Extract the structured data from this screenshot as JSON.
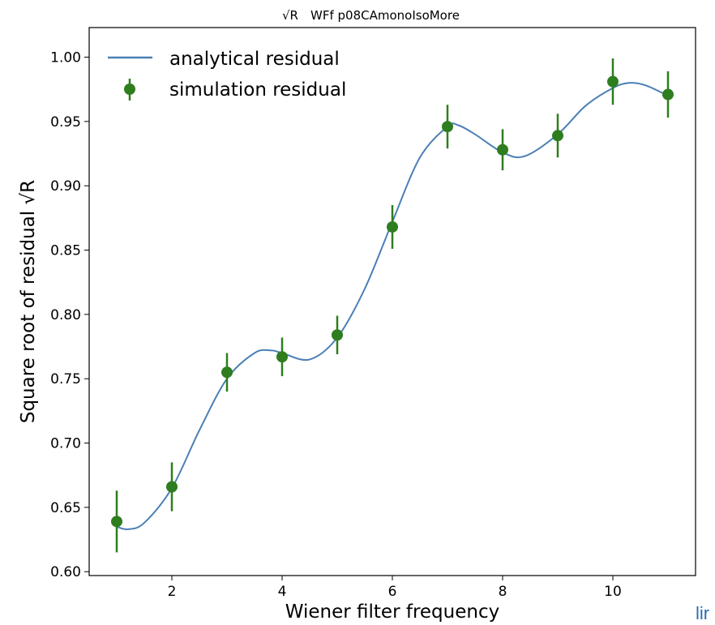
{
  "chart_data": {
    "type": "scatter",
    "title": "WFf p08CAmonoIsoMore",
    "title_symbol": "√R",
    "xlabel": "Wiener filter frequency",
    "ylabel": "Square root of residual √R",
    "xlim": [
      0.5,
      11.5
    ],
    "ylim": [
      0.597,
      1.023
    ],
    "xticks": [
      2,
      4,
      6,
      8,
      10
    ],
    "xtick_labels": [
      "2",
      "4",
      "6",
      "8",
      "10"
    ],
    "yticks": [
      0.6,
      0.65,
      0.7,
      0.75,
      0.8,
      0.85,
      0.9,
      0.95,
      1.0
    ],
    "ytick_labels": [
      "0.60",
      "0.65",
      "0.70",
      "0.75",
      "0.80",
      "0.85",
      "0.90",
      "0.95",
      "1.00"
    ],
    "grid": false,
    "legend_position": "upper-left",
    "series": [
      {
        "name": "analytical residual",
        "type": "line",
        "color": "#4a7fb5",
        "x": [
          1,
          1.2,
          1.5,
          2,
          2.5,
          3,
          3.5,
          3.8,
          4,
          4.5,
          5,
          5.5,
          6,
          6.5,
          7,
          7.2,
          7.5,
          8,
          8.4,
          9,
          9.5,
          10,
          10.3,
          10.6,
          11
        ],
        "y": [
          0.635,
          0.633,
          0.638,
          0.665,
          0.71,
          0.75,
          0.77,
          0.772,
          0.77,
          0.765,
          0.782,
          0.82,
          0.872,
          0.922,
          0.946,
          0.947,
          0.94,
          0.926,
          0.923,
          0.94,
          0.962,
          0.976,
          0.98,
          0.978,
          0.97
        ]
      },
      {
        "name": "simulation residual",
        "type": "errorbar",
        "color": "#2e7d1e",
        "x": [
          1,
          2,
          3,
          4,
          5,
          6,
          7,
          8,
          9,
          10,
          11
        ],
        "y": [
          0.639,
          0.666,
          0.755,
          0.767,
          0.784,
          0.868,
          0.946,
          0.928,
          0.939,
          0.981,
          0.971
        ],
        "yerr": [
          0.024,
          0.019,
          0.015,
          0.015,
          0.015,
          0.017,
          0.017,
          0.016,
          0.017,
          0.018,
          0.018
        ]
      }
    ]
  },
  "colors": {
    "line": "#4a7fb5",
    "marker": "#2e7d1e",
    "fragment": "#2a6db5"
  },
  "fragment_text": "lir"
}
